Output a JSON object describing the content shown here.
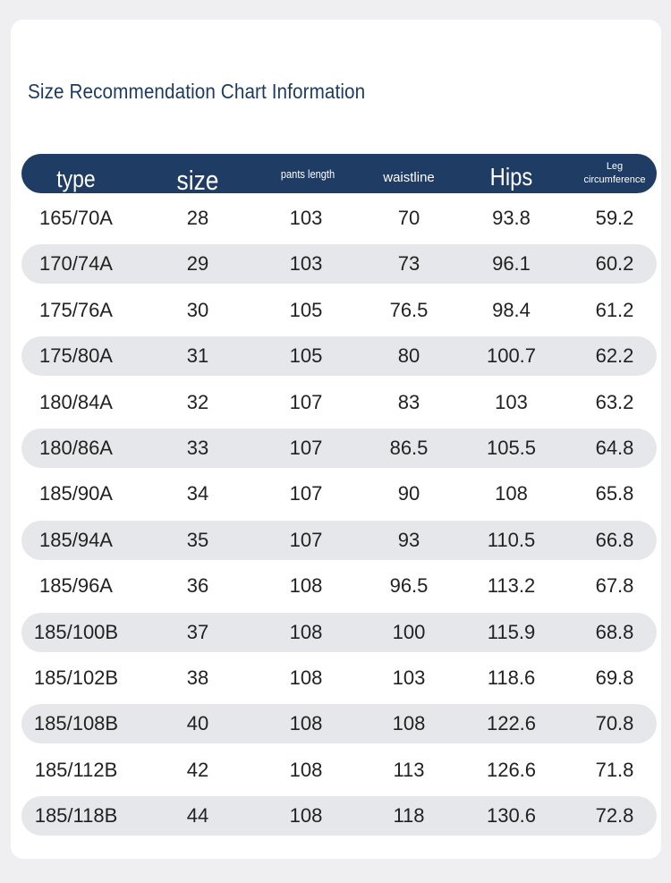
{
  "title": "Size Recommendation Chart Information",
  "colors": {
    "header_bg": "#1f3c64",
    "title": "#1e3a5f",
    "alt_row": "#e5e7ea",
    "page_bg": "#efeff1"
  },
  "headers": [
    "type",
    "size",
    "pants length",
    "waistline",
    "Hips"
  ],
  "header_leg": [
    "Leg",
    "circumference"
  ],
  "rows": [
    [
      "165/70A",
      "28",
      "103",
      "70",
      "93.8",
      "59.2"
    ],
    [
      "170/74A",
      "29",
      "103",
      "73",
      "96.1",
      "60.2"
    ],
    [
      "175/76A",
      "30",
      "105",
      "76.5",
      "98.4",
      "61.2"
    ],
    [
      "175/80A",
      "31",
      "105",
      "80",
      "100.7",
      "62.2"
    ],
    [
      "180/84A",
      "32",
      "107",
      "83",
      "103",
      "63.2"
    ],
    [
      "180/86A",
      "33",
      "107",
      "86.5",
      "105.5",
      "64.8"
    ],
    [
      "185/90A",
      "34",
      "107",
      "90",
      "108",
      "65.8"
    ],
    [
      "185/94A",
      "35",
      "107",
      "93",
      "110.5",
      "66.8"
    ],
    [
      "185/96A",
      "36",
      "108",
      "96.5",
      "113.2",
      "67.8"
    ],
    [
      "185/100B",
      "37",
      "108",
      "100",
      "115.9",
      "68.8"
    ],
    [
      "185/102B",
      "38",
      "108",
      "103",
      "118.6",
      "69.8"
    ],
    [
      "185/108B",
      "40",
      "108",
      "108",
      "122.6",
      "70.8"
    ],
    [
      "185/112B",
      "42",
      "108",
      "113",
      "126.6",
      "71.8"
    ],
    [
      "185/118B",
      "44",
      "108",
      "118",
      "130.6",
      "72.8"
    ]
  ]
}
